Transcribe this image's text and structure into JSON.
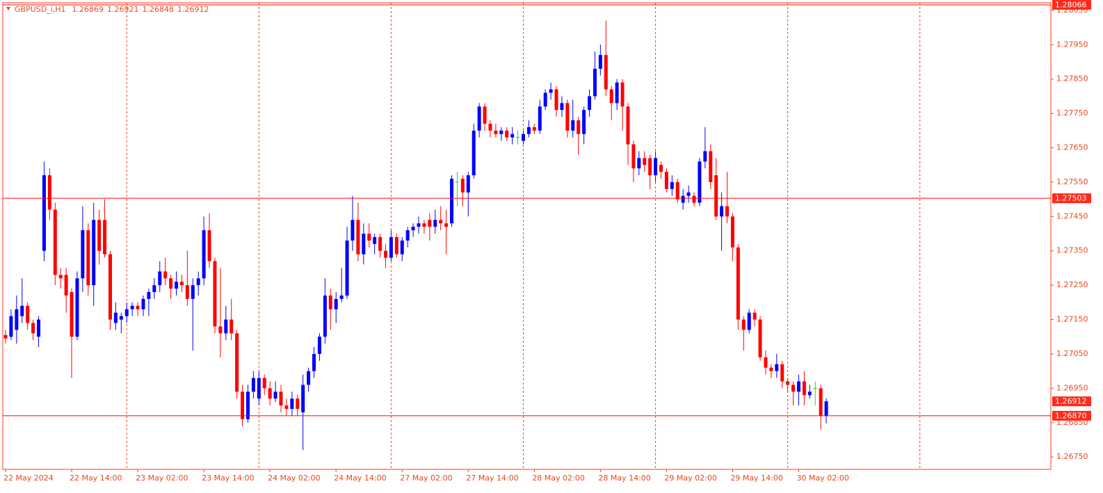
{
  "chart_data": {
    "type": "candlestick",
    "symbol": "GBPUSD_i,H1",
    "categories": [
      "22 May 2024",
      null,
      null,
      null,
      null,
      null,
      null,
      null,
      null,
      null,
      null,
      null,
      "22 May 14:00",
      null,
      null,
      null,
      null,
      null,
      null,
      null,
      null,
      null,
      null,
      null,
      "23 May 02:00",
      null,
      null,
      null,
      null,
      null,
      null,
      null,
      null,
      null,
      null,
      null,
      "23 May 14:00",
      null,
      null,
      null,
      null,
      null,
      null,
      null,
      null,
      null,
      null,
      null,
      "24 May 02:00",
      null,
      null,
      null,
      null,
      null,
      null,
      null,
      null,
      null,
      null,
      null,
      "24 May 14:00",
      null,
      null,
      null,
      null,
      null,
      null,
      null,
      null,
      null,
      null,
      null,
      "27 May 02:00",
      null,
      null,
      null,
      null,
      null,
      null,
      null,
      null,
      null,
      null,
      null,
      "27 May 14:00",
      null,
      null,
      null,
      null,
      null,
      null,
      null,
      null,
      null,
      null,
      null,
      "28 May 02:00",
      null,
      null,
      null,
      null,
      null,
      null,
      null,
      null,
      null,
      null,
      null,
      "28 May 14:00",
      null,
      null,
      null,
      null,
      null,
      null,
      null,
      null,
      null,
      null,
      null,
      "29 May 02:00",
      null,
      null,
      null,
      null,
      null,
      null,
      null,
      null,
      null,
      null,
      null,
      "29 May 14:00",
      null,
      null,
      null,
      null,
      null,
      null,
      null,
      null,
      null,
      null,
      null,
      "30 May 02:00",
      null,
      null,
      null,
      null,
      null
    ],
    "open": [
      1.27105,
      1.271,
      1.2712,
      1.2716,
      1.2719,
      1.2714,
      1.271,
      1.2735,
      1.2757,
      1.2747,
      1.2728,
      1.2728,
      1.2723,
      1.271,
      1.2727,
      1.2741,
      1.2725,
      1.2744,
      1.2744,
      1.2734,
      1.2714,
      1.2715,
      1.2716,
      1.2718,
      1.2719,
      1.2718,
      1.2721,
      1.2723,
      1.2725,
      1.2729,
      1.2727,
      1.2724,
      1.2726,
      1.2725,
      1.2721,
      1.2725,
      1.2727,
      1.2741,
      1.2732,
      1.2713,
      1.2711,
      1.2715,
      1.2711,
      1.2694,
      1.2686,
      1.2694,
      1.2692,
      1.2698,
      1.2695,
      1.2692,
      1.2694,
      1.269,
      1.2689,
      1.2692,
      1.2688,
      1.2696,
      1.27,
      1.2705,
      1.271,
      1.2722,
      1.2718,
      1.2721,
      1.2722,
      1.2738,
      1.2744,
      1.2734,
      1.274,
      1.2737,
      1.2739,
      1.2735,
      1.2733,
      1.2739,
      1.2734,
      1.2738,
      1.2741,
      1.2742,
      1.2743,
      1.2744,
      1.2742,
      1.2744,
      1.2743,
      1.2743,
      1.2755,
      1.2756,
      1.2752,
      1.2757,
      1.277,
      1.2777,
      1.2772,
      1.277,
      1.2769,
      1.277,
      1.2768,
      1.2768,
      1.2767,
      1.2769,
      1.2771,
      1.277,
      1.2777,
      1.2781,
      1.2782,
      1.2776,
      1.2778,
      1.277,
      1.2773,
      1.2769,
      1.2776,
      1.278,
      1.2788,
      1.2792,
      1.2782,
      1.2778,
      1.2784,
      1.2777,
      1.2766,
      1.2759,
      1.2762,
      1.2762,
      1.2757,
      1.276,
      1.2758,
      1.2753,
      1.2755,
      1.2749,
      1.2751,
      1.2751,
      1.2749,
      1.2761,
      1.2764,
      1.2757,
      1.2745,
      1.2748,
      1.2745,
      1.2736,
      1.2715,
      1.2712,
      1.2717,
      1.2715,
      1.2704,
      1.2701,
      1.27,
      1.2702,
      1.2697,
      1.2696,
      1.2694,
      1.2697,
      1.2693,
      1.2695,
      1.2695,
      1.26869
    ],
    "high": [
      1.2712,
      1.2718,
      1.2722,
      1.2727,
      1.272,
      1.2715,
      1.2716,
      1.2761,
      1.2759,
      1.2749,
      1.273,
      1.273,
      1.2724,
      1.2729,
      1.2748,
      1.2743,
      1.2749,
      1.2747,
      1.275,
      1.2735,
      1.272,
      1.2717,
      1.272,
      1.272,
      1.272,
      1.2722,
      1.2724,
      1.2727,
      1.2732,
      1.2733,
      1.2728,
      1.2729,
      1.2728,
      1.2735,
      1.2727,
      1.2729,
      1.2745,
      1.2746,
      1.2733,
      1.273,
      1.2719,
      1.2721,
      1.2712,
      1.2696,
      1.2696,
      1.27,
      1.27,
      1.2699,
      1.2697,
      1.2697,
      1.2696,
      1.2692,
      1.2694,
      1.2693,
      1.2699,
      1.2701,
      1.2707,
      1.2711,
      1.2727,
      1.2724,
      1.2723,
      1.273,
      1.2742,
      1.2751,
      1.2749,
      1.2743,
      1.2743,
      1.274,
      1.274,
      1.2737,
      1.2741,
      1.274,
      1.2739,
      1.2742,
      1.2743,
      1.2745,
      1.2744,
      1.2746,
      1.2747,
      1.2748,
      1.2747,
      1.2757,
      1.2758,
      1.2757,
      1.2758,
      1.2772,
      1.2778,
      1.2778,
      1.2773,
      1.2772,
      1.2771,
      1.2771,
      1.2771,
      1.277,
      1.277,
      1.2773,
      1.2772,
      1.2779,
      1.2782,
      1.2784,
      1.2783,
      1.278,
      1.2779,
      1.2779,
      1.2774,
      1.2777,
      1.2782,
      1.2793,
      1.2795,
      1.2802,
      1.2783,
      1.2785,
      1.2785,
      1.2778,
      1.2767,
      1.2764,
      1.2764,
      1.2763,
      1.2764,
      1.2761,
      1.2759,
      1.2757,
      1.2756,
      1.2753,
      1.2754,
      1.2752,
      1.2762,
      1.2771,
      1.2766,
      1.2762,
      1.2752,
      1.2758,
      1.2746,
      1.2737,
      1.2716,
      1.2718,
      1.2718,
      1.2716,
      1.2706,
      1.2702,
      1.2705,
      1.2703,
      1.2698,
      1.2697,
      1.2699,
      1.27,
      1.2696,
      1.2697,
      1.2696,
      1.26921
    ],
    "low": [
      1.2708,
      1.2709,
      1.2708,
      1.2714,
      1.2712,
      1.2709,
      1.2707,
      1.2732,
      1.2744,
      1.2725,
      1.2724,
      1.2717,
      1.2698,
      1.2709,
      1.2723,
      1.2722,
      1.2719,
      1.2731,
      1.2733,
      1.2712,
      1.2712,
      1.2711,
      1.2714,
      1.2716,
      1.2716,
      1.2716,
      1.2716,
      1.2721,
      1.2723,
      1.2725,
      1.2721,
      1.2722,
      1.2723,
      1.2719,
      1.2706,
      1.2722,
      1.2725,
      1.273,
      1.2711,
      1.2704,
      1.2709,
      1.2709,
      1.2692,
      1.2684,
      1.2685,
      1.2692,
      1.269,
      1.2693,
      1.269,
      1.2691,
      1.2688,
      1.2687,
      1.2687,
      1.2687,
      1.2677,
      1.2694,
      1.2698,
      1.2703,
      1.2708,
      1.2712,
      1.2714,
      1.272,
      1.2721,
      1.2735,
      1.2732,
      1.2731,
      1.2736,
      1.2734,
      1.2733,
      1.273,
      1.2732,
      1.2733,
      1.2732,
      1.2736,
      1.2739,
      1.274,
      1.274,
      1.2738,
      1.274,
      1.2741,
      1.2734,
      1.2742,
      1.2748,
      1.2748,
      1.2745,
      1.2756,
      1.2768,
      1.277,
      1.2768,
      1.2768,
      1.2767,
      1.2767,
      1.2766,
      1.2766,
      1.2766,
      1.2768,
      1.2769,
      1.2769,
      1.2776,
      1.2779,
      1.2774,
      1.2774,
      1.2768,
      1.2768,
      1.2763,
      1.2766,
      1.2774,
      1.2779,
      1.2786,
      1.278,
      1.2773,
      1.2776,
      1.277,
      1.276,
      1.2755,
      1.2757,
      1.2758,
      1.2753,
      1.2755,
      1.2756,
      1.2752,
      1.2751,
      1.2749,
      1.2747,
      1.2749,
      1.2748,
      1.2748,
      1.2759,
      1.2753,
      1.2744,
      1.2735,
      1.2743,
      1.2732,
      1.2712,
      1.2706,
      1.2711,
      1.2713,
      1.2703,
      1.2699,
      1.2698,
      1.2698,
      1.2695,
      1.2694,
      1.269,
      1.269,
      1.269,
      1.2692,
      1.269,
      1.2683,
      1.26848
    ],
    "close": [
      1.27095,
      1.2716,
      1.2718,
      1.2719,
      1.2714,
      1.2711,
      1.2715,
      1.2757,
      1.2747,
      1.2728,
      1.2727,
      1.2722,
      1.271,
      1.2727,
      1.2741,
      1.2725,
      1.2744,
      1.2735,
      1.2734,
      1.2715,
      1.2717,
      1.2716,
      1.2718,
      1.2719,
      1.2718,
      1.2721,
      1.2723,
      1.2725,
      1.2729,
      1.2727,
      1.2724,
      1.2726,
      1.2725,
      1.2721,
      1.2725,
      1.2727,
      1.2741,
      1.2732,
      1.2713,
      1.2711,
      1.2715,
      1.2711,
      1.2694,
      1.2686,
      1.2694,
      1.2698,
      1.2698,
      1.2695,
      1.2692,
      1.2694,
      1.269,
      1.2689,
      1.2692,
      1.2689,
      1.2696,
      1.27,
      1.2705,
      1.271,
      1.2722,
      1.2718,
      1.2721,
      1.2722,
      1.2738,
      1.2744,
      1.2734,
      1.274,
      1.2738,
      1.2739,
      1.2735,
      1.2733,
      1.2739,
      1.2734,
      1.2738,
      1.2741,
      1.2742,
      1.2743,
      1.2742,
      1.2742,
      1.2744,
      1.2743,
      1.2742,
      1.2756,
      1.2755,
      1.2752,
      1.2757,
      1.277,
      1.2777,
      1.2772,
      1.277,
      1.2769,
      1.277,
      1.2768,
      1.2769,
      1.2768,
      1.2769,
      1.2771,
      1.277,
      1.2777,
      1.2781,
      1.2782,
      1.2776,
      1.2778,
      1.277,
      1.2773,
      1.2769,
      1.2776,
      1.278,
      1.2788,
      1.2792,
      1.2782,
      1.2778,
      1.2784,
      1.2777,
      1.2766,
      1.2759,
      1.2762,
      1.276,
      1.2757,
      1.2762,
      1.2758,
      1.2753,
      1.2755,
      1.275,
      1.2751,
      1.2752,
      1.2749,
      1.2761,
      1.2764,
      1.2755,
      1.2745,
      1.2748,
      1.2745,
      1.2736,
      1.2715,
      1.2712,
      1.2717,
      1.2715,
      1.2704,
      1.2701,
      1.27,
      1.2702,
      1.2697,
      1.2696,
      1.2694,
      1.2697,
      1.2693,
      1.2694,
      1.2695,
      1.2687,
      1.26912
    ],
    "up_color": "#0000ff",
    "down_color": "#ff0000",
    "doji_color": "#32cd32",
    "ylim": [
      1.26714,
      1.28072
    ],
    "yticks": [
      {
        "value": 1.2805,
        "label": "1.28050"
      },
      {
        "value": 1.2795,
        "label": "1.27950"
      },
      {
        "value": 1.2785,
        "label": "1.27850"
      },
      {
        "value": 1.2775,
        "label": "1.27750"
      },
      {
        "value": 1.2765,
        "label": "1.27650"
      },
      {
        "value": 1.2755,
        "label": "1.27550"
      },
      {
        "value": 1.2745,
        "label": "1.27450"
      },
      {
        "value": 1.2735,
        "label": "1.27350"
      },
      {
        "value": 1.2725,
        "label": "1.27250"
      },
      {
        "value": 1.2715,
        "label": "1.27150"
      },
      {
        "value": 1.2705,
        "label": "1.27050"
      },
      {
        "value": 1.2695,
        "label": "1.26950"
      },
      {
        "value": 1.2685,
        "label": "1.26850"
      },
      {
        "value": 1.2675,
        "label": "1.26750"
      }
    ],
    "hlines": [
      1.28066,
      1.27503,
      {
        "value": 1.2687,
        "label": "1.26870"
      }
    ],
    "grid": true
  }
}
